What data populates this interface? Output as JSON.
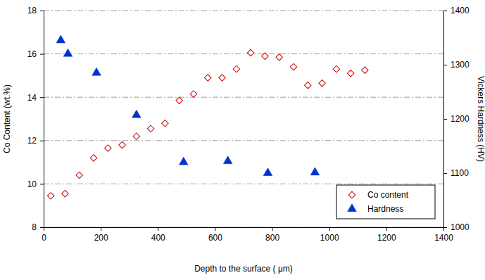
{
  "chart_data": {
    "type": "scatter",
    "x_label": "Depth to the surface ( μm)",
    "y_label": "Co Content (wt.%)",
    "y2_label": "Vickers Hardness  (HV)",
    "xlim": [
      0,
      1400
    ],
    "xticks": [
      0,
      200,
      400,
      600,
      800,
      1000,
      1200,
      1400
    ],
    "ylim": [
      8,
      18
    ],
    "yticks": [
      8,
      10,
      12,
      14,
      16,
      18
    ],
    "y2lim": [
      1000,
      1400
    ],
    "y2ticks": [
      1000,
      1100,
      1200,
      1300,
      1400
    ],
    "grid": true,
    "legend": "bottom-right",
    "series": [
      {
        "name": "Co content",
        "color": "#cc0000",
        "marker": "diamond-open",
        "x": [
          25,
          75,
          125,
          175,
          225,
          275,
          325,
          375,
          425,
          475,
          525,
          575,
          625,
          675,
          725,
          775,
          825,
          875,
          925,
          975,
          1025,
          1075,
          1125
        ],
        "values": [
          9.45,
          9.55,
          10.4,
          11.2,
          11.65,
          11.8,
          12.2,
          12.55,
          12.8,
          13.85,
          14.15,
          14.9,
          14.9,
          15.3,
          16.05,
          15.9,
          15.85,
          15.4,
          14.55,
          14.65,
          15.3,
          15.1,
          15.25
        ]
      },
      {
        "name": "Hardness",
        "color": "#0033cc",
        "marker": "triangle",
        "axis": "y2",
        "x": [
          60,
          85,
          185,
          325,
          490,
          645,
          785,
          950
        ],
        "values": [
          1345,
          1320,
          1285,
          1207,
          1120,
          1122,
          1100,
          1101
        ]
      }
    ]
  }
}
